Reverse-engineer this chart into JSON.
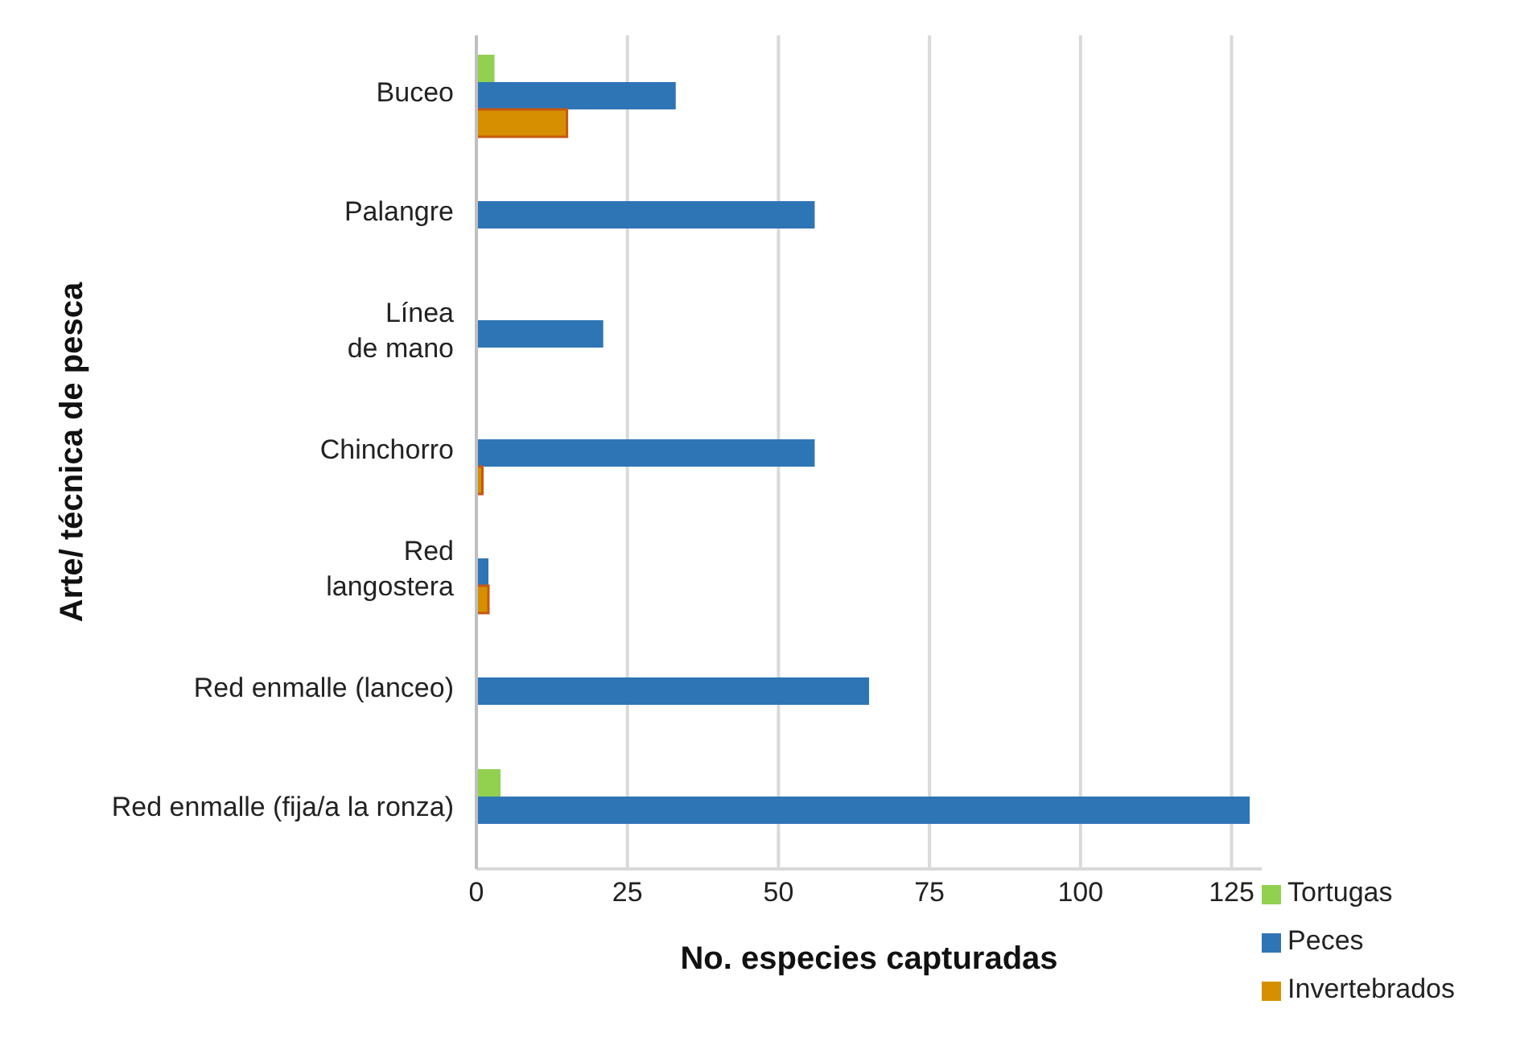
{
  "chart_data": {
    "type": "bar",
    "orientation": "horizontal",
    "xlabel": "No. especies capturadas",
    "ylabel": "Arte/ técnica de pesca",
    "categories": [
      "Buceo",
      "Palangre",
      "Línea\nde mano",
      "Chinchorro",
      "Red\nlangostera",
      "Red enmalle (lanceo)",
      "Red enmalle (fija/a la ronza)"
    ],
    "series": [
      {
        "name": "Tortugas",
        "color": "#92d050",
        "values": [
          3,
          null,
          null,
          null,
          null,
          null,
          4
        ]
      },
      {
        "name": "Peces",
        "color": "#2e75b6",
        "values": [
          33,
          56,
          21,
          56,
          2,
          65,
          128
        ]
      },
      {
        "name": "Invertebrados",
        "color": "#d68f00",
        "values": [
          15,
          null,
          null,
          1,
          2,
          null,
          null
        ]
      }
    ],
    "xlim": [
      0,
      130
    ],
    "xticks": [
      0,
      25,
      50,
      75,
      100,
      125
    ],
    "grid": "x",
    "legend": "bottom right"
  }
}
